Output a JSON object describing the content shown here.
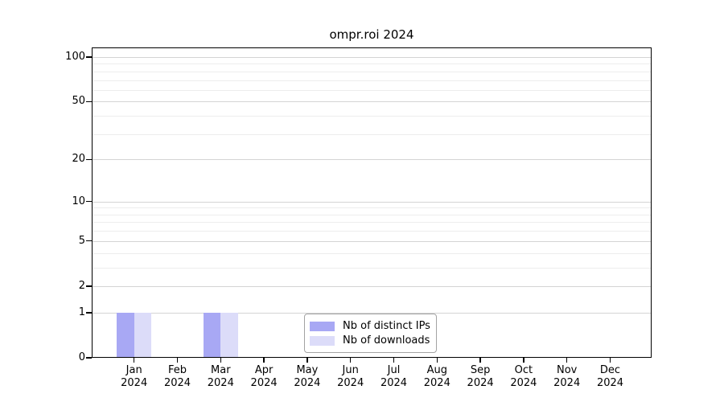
{
  "title": "ompr.roi 2024",
  "colors": {
    "distinct_ips": "#a8a8f4",
    "downloads": "#dcdcf9",
    "grid_major": "#d4d4d4",
    "grid_minor": "#ededed",
    "axis": "#000000",
    "legend_border": "#a3a3a3",
    "background": "#ffffff"
  },
  "legend": {
    "items": [
      {
        "label": "Nb of distinct IPs",
        "color": "#a8a8f4"
      },
      {
        "label": "Nb of downloads",
        "color": "#dcdcf9"
      }
    ],
    "position": "bottom-center"
  },
  "chart_data": {
    "type": "bar",
    "title": "ompr.roi 2024",
    "categories": [
      "Jan 2024",
      "Feb 2024",
      "Mar 2024",
      "Apr 2024",
      "May 2024",
      "Jun 2024",
      "Jul 2024",
      "Aug 2024",
      "Sep 2024",
      "Oct 2024",
      "Nov 2024",
      "Dec 2024"
    ],
    "x_tick_months": [
      "Jan",
      "Feb",
      "Mar",
      "Apr",
      "May",
      "Jun",
      "Jul",
      "Aug",
      "Sep",
      "Oct",
      "Nov",
      "Dec"
    ],
    "x_tick_year": "2024",
    "series": [
      {
        "name": "Nb of distinct IPs",
        "color": "#a8a8f4",
        "values": [
          1,
          0,
          1,
          0,
          0,
          0,
          0,
          0,
          0,
          0,
          0,
          0
        ]
      },
      {
        "name": "Nb of downloads",
        "color": "#dcdcf9",
        "values": [
          1,
          0,
          1,
          0,
          0,
          0,
          0,
          0,
          0,
          0,
          0,
          0
        ]
      }
    ],
    "xlabel": "",
    "ylabel": "",
    "yscale": "log1p",
    "ylim": [
      0,
      115
    ],
    "yticks": [
      0,
      1,
      2,
      5,
      10,
      20,
      50,
      100
    ],
    "minor_yticks": [
      3,
      4,
      6,
      7,
      8,
      9,
      30,
      40,
      60,
      70,
      80,
      90
    ],
    "grid": true,
    "legend_position": "bottom-center"
  }
}
